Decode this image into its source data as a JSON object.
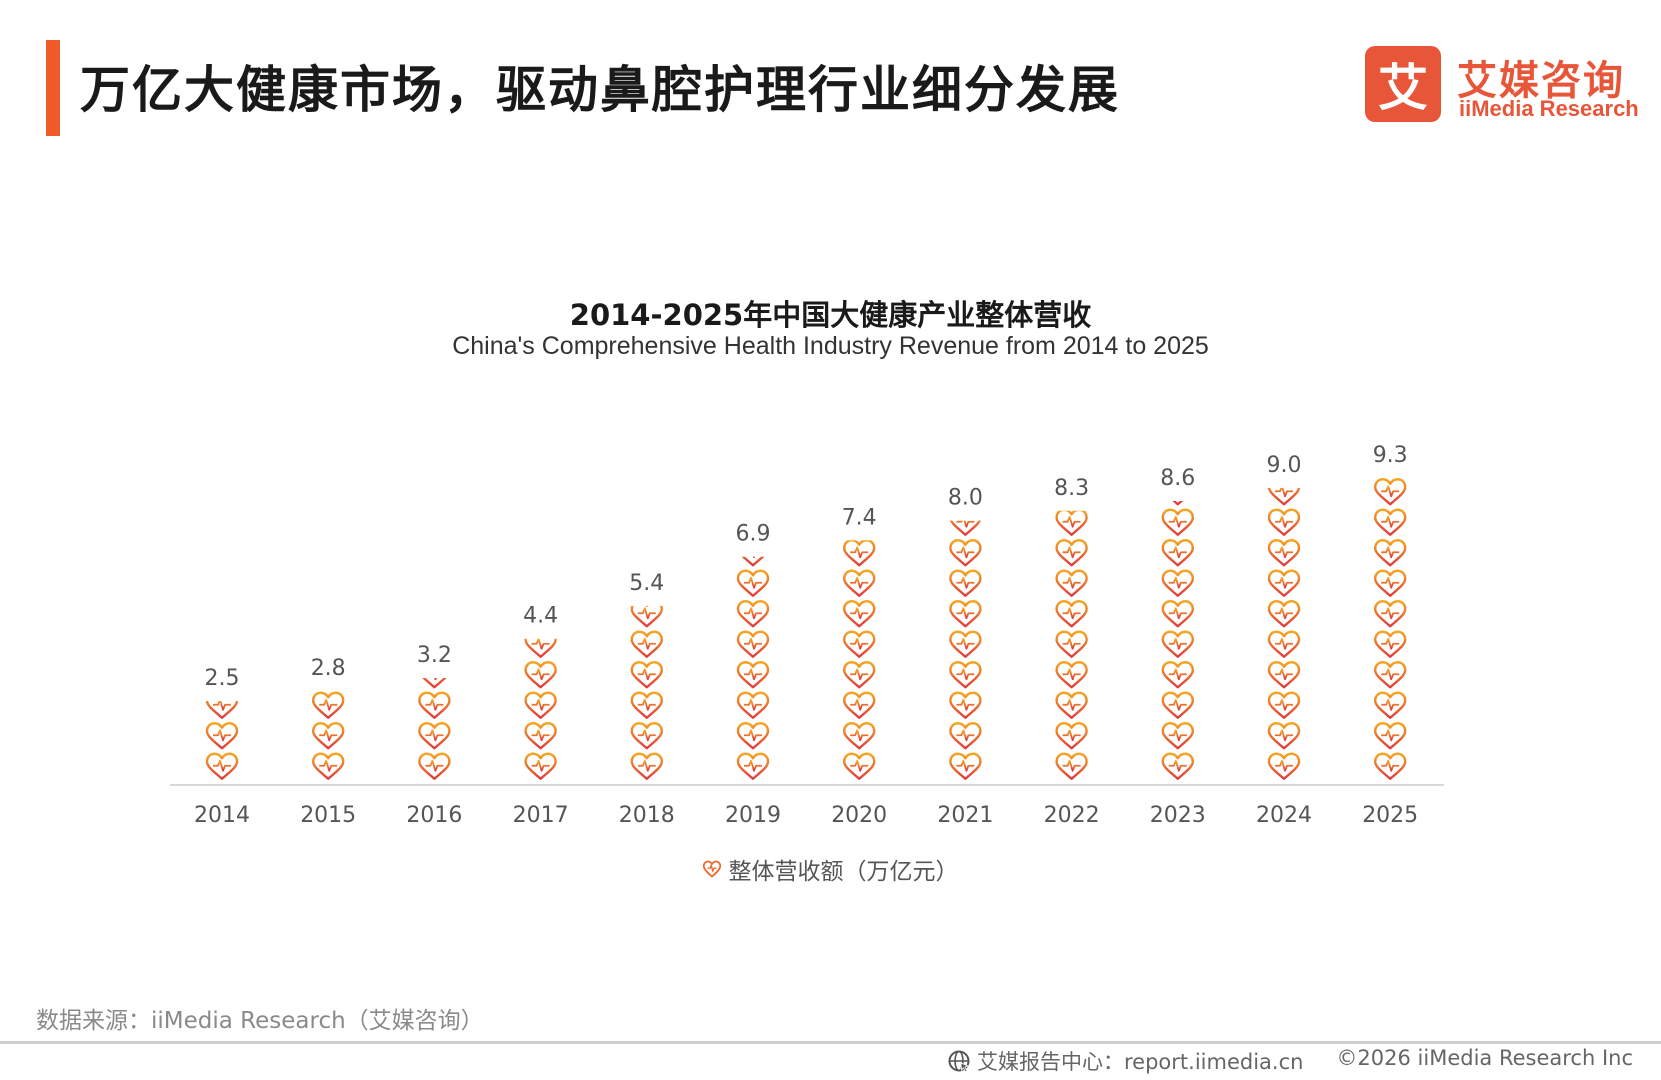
{
  "header": {
    "title": "万亿大健康市场，驱动鼻腔护理行业细分发展",
    "accent_color": "#f05a28"
  },
  "logo": {
    "mark": "艾",
    "name_cn": "艾媒咨询",
    "name_en": "iiMedia Research",
    "color": "#e8563a"
  },
  "chart_data": {
    "type": "bar",
    "style": "pictograph-heart-stack",
    "title": "2014-2025年中国大健康产业整体营收",
    "subtitle": "China's Comprehensive Health Industry Revenue from 2014 to 2025",
    "categories": [
      "2014",
      "2015",
      "2016",
      "2017",
      "2018",
      "2019",
      "2020",
      "2021",
      "2022",
      "2023",
      "2024",
      "2025"
    ],
    "series": [
      {
        "name": "整体营收额（万亿元）",
        "values": [
          2.5,
          2.8,
          3.2,
          4.4,
          5.4,
          6.9,
          7.4,
          8.0,
          8.3,
          8.6,
          9.0,
          9.3
        ],
        "value_labels": [
          "2.5",
          "2.8",
          "3.2",
          "4.4",
          "5.4",
          "6.9",
          "7.4",
          "8.0",
          "8.3",
          "8.6",
          "9.0",
          "9.3"
        ]
      }
    ],
    "xlabel": "",
    "ylabel": "",
    "ylim": [
      0,
      9.3
    ],
    "grid": false,
    "legend_position": "bottom",
    "icon_stroke_start": "#e23b3b",
    "icon_stroke_end": "#f6a623",
    "baseline_color": "#d8d8d8"
  },
  "footer": {
    "source": "数据来源：iiMedia Research（艾媒咨询）",
    "site": "艾媒报告中心：report.iimedia.cn",
    "copyright": "©2026  iiMedia Research  Inc"
  }
}
